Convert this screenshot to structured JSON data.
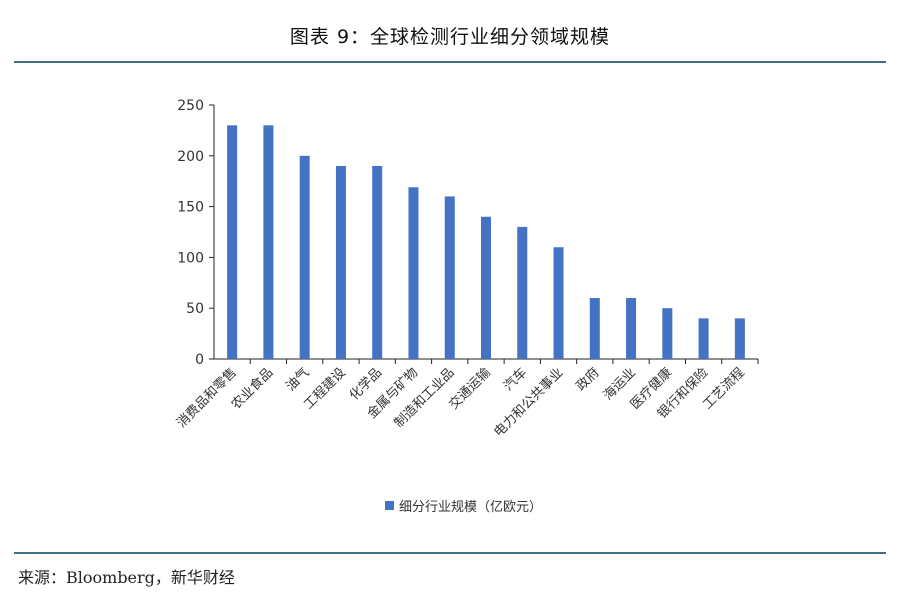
{
  "title": "图表 9：全球检测行业细分领域规模",
  "source": "来源：Bloomberg，新华财经",
  "colors": {
    "bar": "#4472c4",
    "rule": "#3f6f84",
    "axis": "#222222"
  },
  "chart_data": {
    "type": "bar",
    "categories": [
      "消费品和零售",
      "农业食品",
      "油气",
      "工程建设",
      "化学品",
      "金属与矿物",
      "制造和工业品",
      "交通运输",
      "汽车",
      "电力和公共事业",
      "政府",
      "海运业",
      "医疗健康",
      "银行和保险",
      "工艺流程"
    ],
    "series": [
      {
        "name": "细分行业规模（亿欧元）",
        "values": [
          230,
          230,
          200,
          190,
          190,
          169,
          160,
          140,
          130,
          110,
          60,
          60,
          50,
          40,
          40
        ]
      }
    ],
    "yticks": [
      0,
      50,
      100,
      150,
      200,
      250
    ],
    "ylim": [
      0,
      250
    ],
    "grid": false,
    "legend_position": "bottom-center"
  }
}
